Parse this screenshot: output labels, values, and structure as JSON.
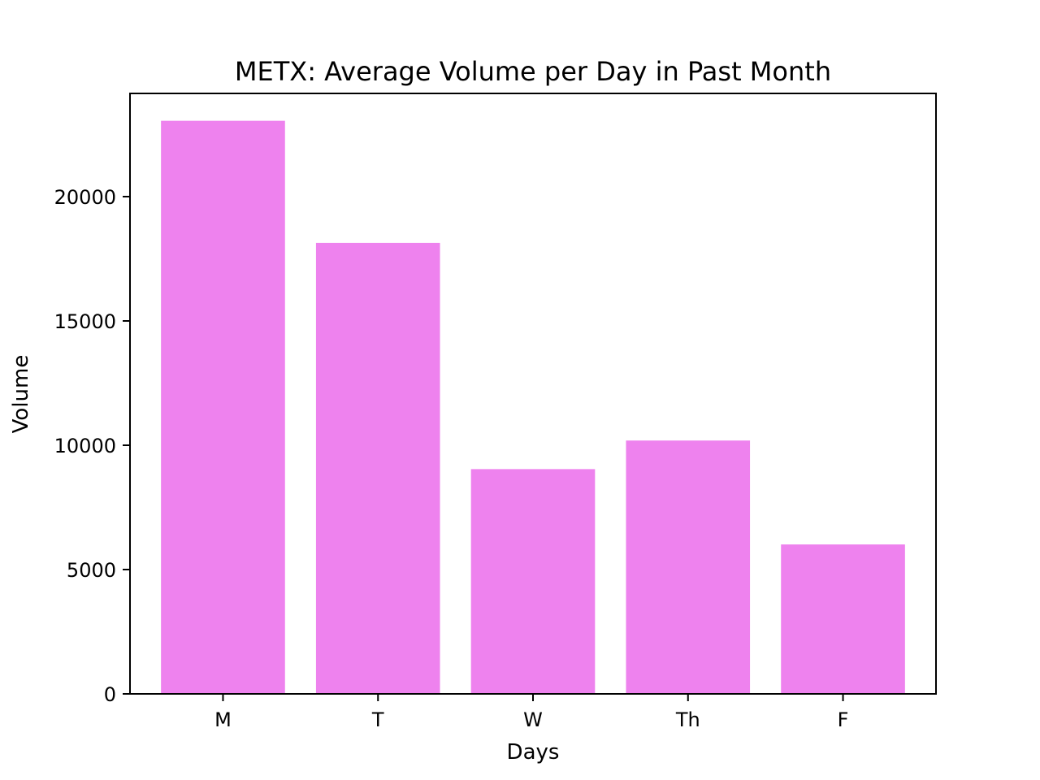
{
  "chart_data": {
    "type": "bar",
    "title": "METX: Average Volume per Day in Past Month",
    "xlabel": "Days",
    "ylabel": "Volume",
    "categories": [
      "M",
      "T",
      "W",
      "Th",
      "F"
    ],
    "values": [
      23050,
      18140,
      9040,
      10190,
      6010
    ],
    "ylim": [
      0,
      24150
    ],
    "yticks": [
      0,
      5000,
      10000,
      15000,
      20000
    ],
    "ytick_labels": [
      "0",
      "5000",
      "10000",
      "15000",
      "20000"
    ],
    "grid": false,
    "legend": "none",
    "bar_color": "#ee82ee",
    "axis_color": "#000000"
  }
}
